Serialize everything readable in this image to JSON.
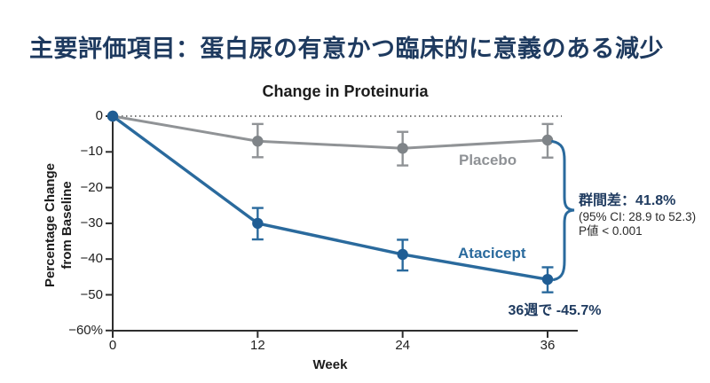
{
  "page": {
    "title": "主要評価項目：蛋白尿の有意かつ臨床的に意義のある減少"
  },
  "chart_data": {
    "type": "line",
    "title": "Change in Proteinuria",
    "xlabel": "Week",
    "ylabel_lines": [
      "Percentage Change",
      "from Baseline"
    ],
    "x": [
      0,
      12,
      24,
      36
    ],
    "x_ticks": [
      "0",
      "12",
      "24",
      "36"
    ],
    "y_tick_values": [
      0,
      -10,
      -20,
      -30,
      -40,
      -50,
      -60
    ],
    "y_ticks": [
      "0",
      "−10",
      "−20",
      "−30",
      "−40",
      "−50",
      "−60%"
    ],
    "xlim": [
      0,
      36
    ],
    "ylim": [
      -60,
      0
    ],
    "grid": false,
    "zero_reference_line": true,
    "legend_position": "inline-labels",
    "series": [
      {
        "name": "Placebo",
        "color": "#909396",
        "marker_color": "#7f8488",
        "line_width": 3,
        "values": [
          0,
          -7,
          -9,
          -6.7
        ],
        "ci_high": [
          null,
          -2.2,
          -4.4,
          -2.2
        ],
        "ci_low": [
          null,
          -11.5,
          -13.8,
          -11.6
        ]
      },
      {
        "name": "Atacicept",
        "color": "#2a6a9d",
        "marker_color": "#1f5d94",
        "line_width": 3.5,
        "values": [
          0,
          -30,
          -38.7,
          -45.7
        ],
        "ci_high": [
          null,
          -25.7,
          -34.6,
          -42.3
        ],
        "ci_low": [
          null,
          -34.5,
          -43.2,
          -49.3
        ]
      }
    ],
    "annotations": {
      "difference_label": "群間差：",
      "difference_value": "41.8%",
      "ci_text": "(95% CI: 28.9 to 52.3)",
      "p_text": "P値 < 0.001",
      "endpoint_text": "36週で -45.7%"
    }
  },
  "colors": {
    "title_navy": "#1e3a5f",
    "atacicept_blue": "#2a6a9d",
    "placebo_gray": "#909396",
    "axis": "#2e2e2e"
  }
}
